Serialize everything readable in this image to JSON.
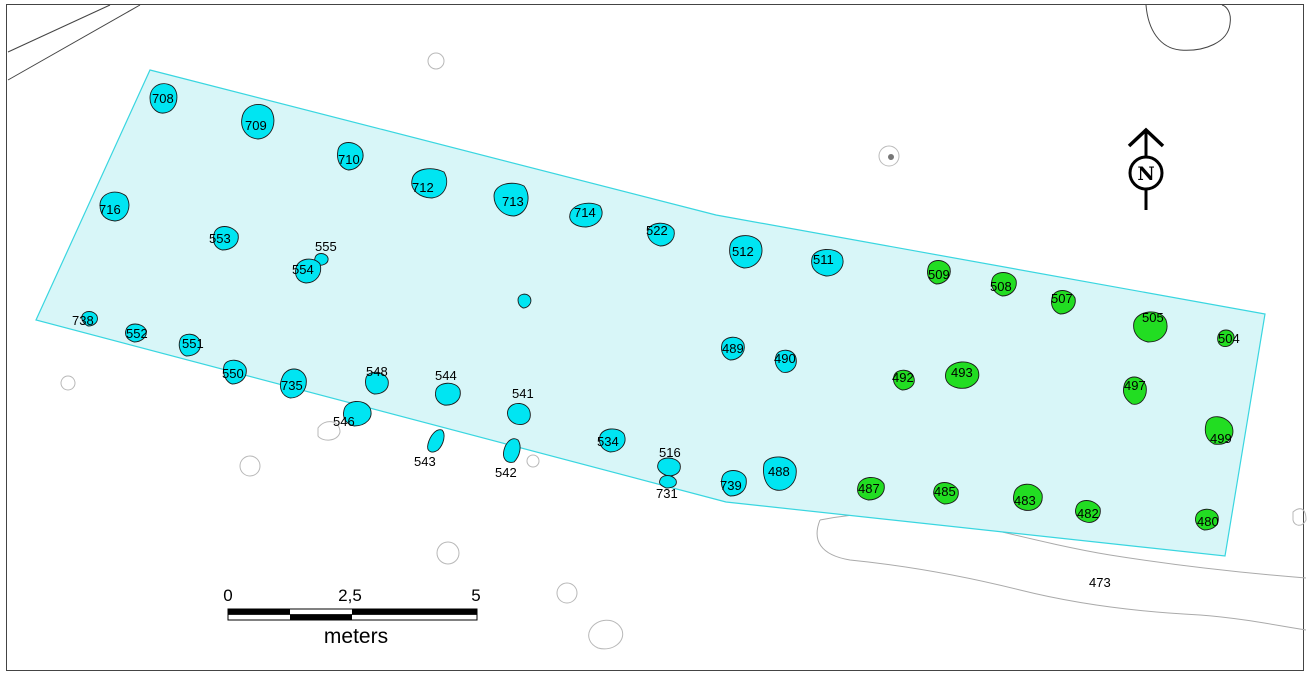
{
  "colors": {
    "area_fill": "#d8f6f8",
    "area_stroke": "#39d6e0",
    "feature_cyan": "#00e5f2",
    "feature_green": "#22dd22",
    "background": "#ffffff"
  },
  "north_arrow": {
    "letter": "N",
    "icon": "north-arrow-icon"
  },
  "scale_bar": {
    "ticks": [
      "0",
      "2,5",
      "5"
    ],
    "unit": "meters"
  },
  "features": [
    {
      "id": "708",
      "group": "cyan"
    },
    {
      "id": "709",
      "group": "cyan"
    },
    {
      "id": "710",
      "group": "cyan"
    },
    {
      "id": "712",
      "group": "cyan"
    },
    {
      "id": "713",
      "group": "cyan"
    },
    {
      "id": "714",
      "group": "cyan"
    },
    {
      "id": "716",
      "group": "cyan"
    },
    {
      "id": "553",
      "group": "cyan"
    },
    {
      "id": "555",
      "group": "cyan"
    },
    {
      "id": "554",
      "group": "cyan"
    },
    {
      "id": "522",
      "group": "cyan"
    },
    {
      "id": "512",
      "group": "cyan"
    },
    {
      "id": "511",
      "group": "cyan"
    },
    {
      "id": "509",
      "group": "green"
    },
    {
      "id": "508",
      "group": "green"
    },
    {
      "id": "507",
      "group": "green"
    },
    {
      "id": "505",
      "group": "green"
    },
    {
      "id": "504",
      "group": "green"
    },
    {
      "id": "738",
      "group": "cyan"
    },
    {
      "id": "552",
      "group": "cyan"
    },
    {
      "id": "551",
      "group": "cyan"
    },
    {
      "id": "550",
      "group": "cyan"
    },
    {
      "id": "735",
      "group": "cyan"
    },
    {
      "id": "548",
      "group": "cyan"
    },
    {
      "id": "546",
      "group": "cyan"
    },
    {
      "id": "544",
      "group": "cyan"
    },
    {
      "id": "541",
      "group": "cyan"
    },
    {
      "id": "543",
      "group": "cyan"
    },
    {
      "id": "542",
      "group": "cyan"
    },
    {
      "id": "534",
      "group": "cyan"
    },
    {
      "id": "516",
      "group": "cyan"
    },
    {
      "id": "731",
      "group": "cyan"
    },
    {
      "id": "739",
      "group": "cyan"
    },
    {
      "id": "488",
      "group": "cyan"
    },
    {
      "id": "489",
      "group": "cyan"
    },
    {
      "id": "490",
      "group": "cyan"
    },
    {
      "id": "492",
      "group": "green"
    },
    {
      "id": "493",
      "group": "green"
    },
    {
      "id": "497",
      "group": "green"
    },
    {
      "id": "499",
      "group": "green"
    },
    {
      "id": "487",
      "group": "green"
    },
    {
      "id": "485",
      "group": "green"
    },
    {
      "id": "483",
      "group": "green"
    },
    {
      "id": "482",
      "group": "green"
    },
    {
      "id": "480",
      "group": "green"
    }
  ],
  "other_labels": [
    "473"
  ]
}
